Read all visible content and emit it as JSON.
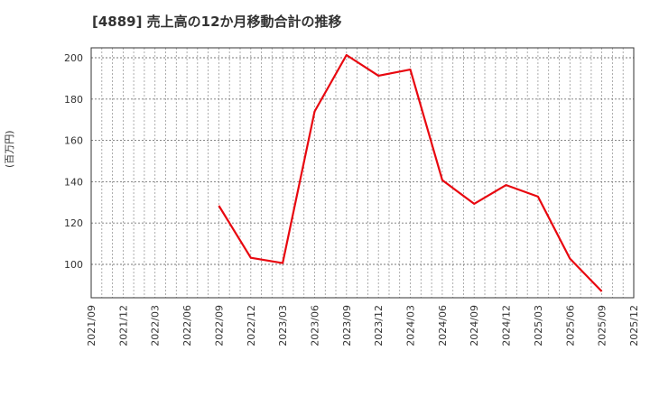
{
  "header": {
    "title": "[4889]  売上高の12か月移動合計の推移"
  },
  "axis": {
    "ylabel": "(百万円)"
  },
  "colors": {
    "line": "#e8070f",
    "grid": "#999999",
    "frame": "#333333"
  },
  "chart_data": {
    "type": "line",
    "title": "[4889]  売上高の12か月移動合計の推移",
    "xlabel": "",
    "ylabel": "(百万円)",
    "ylim": [
      84,
      205
    ],
    "yticks": [
      100,
      120,
      140,
      160,
      180,
      200
    ],
    "xticks": [
      "2021/09",
      "2021/12",
      "2022/03",
      "2022/06",
      "2022/09",
      "2022/12",
      "2023/03",
      "2023/06",
      "2023/09",
      "2023/12",
      "2024/03",
      "2024/06",
      "2024/09",
      "2024/12",
      "2025/03",
      "2025/06",
      "2025/09",
      "2025/12"
    ],
    "grid": true,
    "legend": null,
    "series": [
      {
        "name": "売上高(12か月移動合計)",
        "x": [
          "2022/09",
          "2022/12",
          "2023/03",
          "2023/06",
          "2023/09",
          "2023/12",
          "2024/03",
          "2024/06",
          "2024/09",
          "2024/12",
          "2025/03",
          "2025/06",
          "2025/09"
        ],
        "values": [
          128.4,
          103.2,
          100.6,
          174.0,
          201.3,
          191.3,
          194.3,
          140.8,
          129.3,
          138.4,
          132.8,
          102.8,
          86.9
        ]
      }
    ]
  }
}
